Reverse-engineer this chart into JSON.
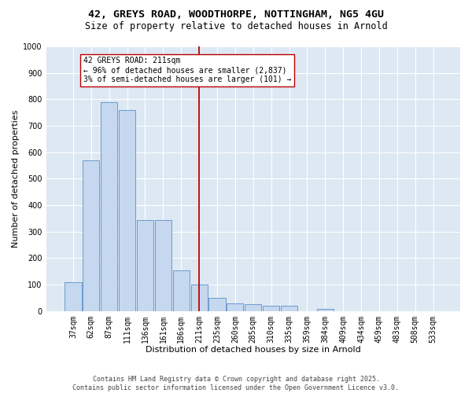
{
  "title_line1": "42, GREYS ROAD, WOODTHORPE, NOTTINGHAM, NG5 4GU",
  "title_line2": "Size of property relative to detached houses in Arnold",
  "xlabel": "Distribution of detached houses by size in Arnold",
  "ylabel": "Number of detached properties",
  "bar_color": "#c5d8ef",
  "bar_edge_color": "#5b8fc9",
  "background_color": "#dde8f3",
  "grid_color": "#ffffff",
  "annotation_text": "42 GREYS ROAD: 211sqm\n← 96% of detached houses are smaller (2,837)\n3% of semi-detached houses are larger (101) →",
  "vline_x_idx": 7,
  "vline_color": "#bb0000",
  "categories": [
    "37sqm",
    "62sqm",
    "87sqm",
    "111sqm",
    "136sqm",
    "161sqm",
    "186sqm",
    "211sqm",
    "235sqm",
    "260sqm",
    "285sqm",
    "310sqm",
    "335sqm",
    "359sqm",
    "384sqm",
    "409sqm",
    "434sqm",
    "459sqm",
    "483sqm",
    "508sqm",
    "533sqm"
  ],
  "values": [
    110,
    570,
    790,
    760,
    345,
    345,
    155,
    100,
    50,
    30,
    25,
    20,
    20,
    0,
    8,
    0,
    0,
    0,
    0,
    0,
    0
  ],
  "ylim": [
    0,
    1000
  ],
  "yticks": [
    0,
    100,
    200,
    300,
    400,
    500,
    600,
    700,
    800,
    900,
    1000
  ],
  "footer": "Contains HM Land Registry data © Crown copyright and database right 2025.\nContains public sector information licensed under the Open Government Licence v3.0.",
  "title_fontsize": 9.5,
  "subtitle_fontsize": 8.5,
  "ylabel_fontsize": 8,
  "xlabel_fontsize": 8,
  "tick_fontsize": 7,
  "annotation_fontsize": 7,
  "footer_fontsize": 6
}
